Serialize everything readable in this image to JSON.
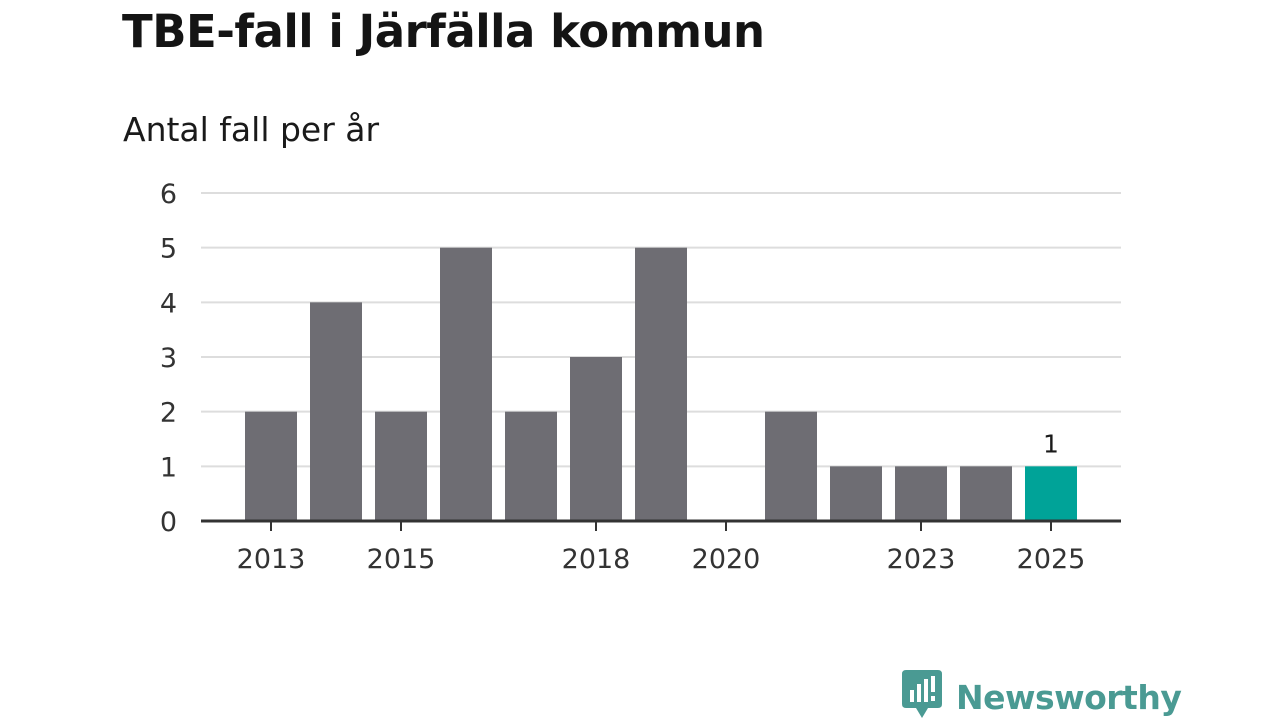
{
  "header": {
    "title": "TBE-fall i Järfälla kommun",
    "subtitle": "Antal fall per år"
  },
  "brand": {
    "name": "Newsworthy",
    "color": "#4a9a93"
  },
  "colors": {
    "bar": "#6e6d73",
    "highlight": "#00a398",
    "grid": "#dddddd",
    "axis": "#333333"
  },
  "chart_data": {
    "type": "bar",
    "title": "TBE-fall i Järfälla kommun",
    "subtitle": "Antal fall per år",
    "xlabel": "",
    "ylabel": "",
    "categories": [
      "2013",
      "2014",
      "2015",
      "2016",
      "2017",
      "2018",
      "2019",
      "2020",
      "2021",
      "2022",
      "2023",
      "2024",
      "2025"
    ],
    "values": [
      2,
      4,
      2,
      5,
      2,
      3,
      5,
      0,
      2,
      1,
      1,
      1,
      1
    ],
    "ylim": [
      0,
      6
    ],
    "yticks": [
      "0",
      "1",
      "2",
      "3",
      "4",
      "5",
      "6"
    ],
    "xtick_labels": [
      "2013",
      "2015",
      "2018",
      "2020",
      "2023",
      "2025"
    ],
    "highlight_category": "2025",
    "data_labels": [
      {
        "category": "2025",
        "text": "1"
      }
    ],
    "grid": true,
    "legend": "none"
  }
}
